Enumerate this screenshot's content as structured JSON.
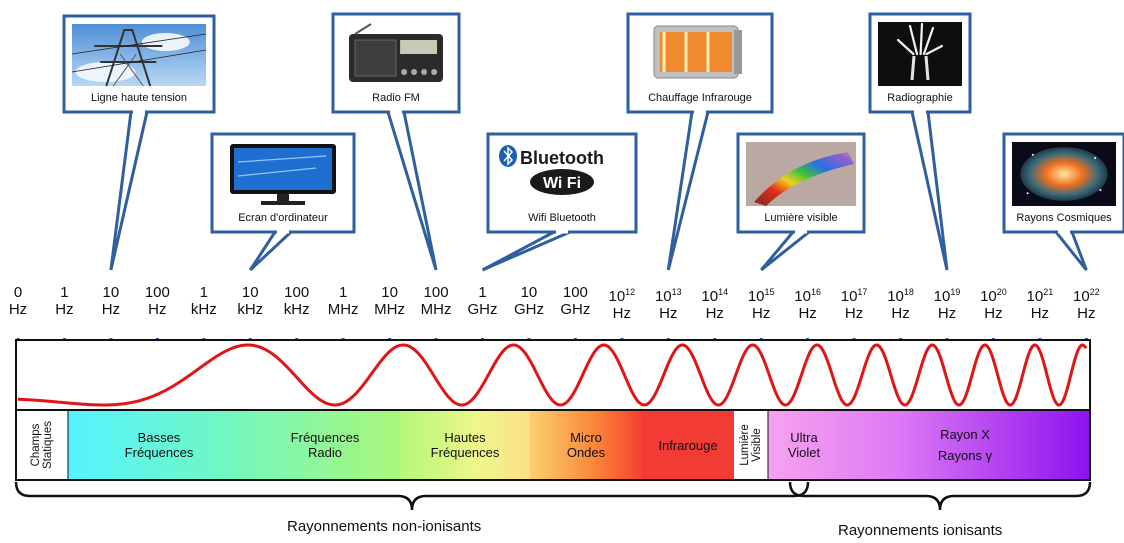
{
  "frequency_ticks": [
    {
      "value": "0",
      "exp": "",
      "unit": "Hz"
    },
    {
      "value": "1",
      "exp": "",
      "unit": "Hz"
    },
    {
      "value": "10",
      "exp": "",
      "unit": "Hz"
    },
    {
      "value": "100",
      "exp": "",
      "unit": "Hz"
    },
    {
      "value": "1",
      "exp": "",
      "unit": "kHz"
    },
    {
      "value": "10",
      "exp": "",
      "unit": "kHz"
    },
    {
      "value": "100",
      "exp": "",
      "unit": "kHz"
    },
    {
      "value": "1",
      "exp": "",
      "unit": "MHz"
    },
    {
      "value": "10",
      "exp": "",
      "unit": "MHz"
    },
    {
      "value": "100",
      "exp": "",
      "unit": "MHz"
    },
    {
      "value": "1",
      "exp": "",
      "unit": "GHz"
    },
    {
      "value": "10",
      "exp": "",
      "unit": "GHz"
    },
    {
      "value": "100",
      "exp": "",
      "unit": "GHz"
    },
    {
      "value": "10",
      "exp": "12",
      "unit": "Hz"
    },
    {
      "value": "10",
      "exp": "13",
      "unit": "Hz"
    },
    {
      "value": "10",
      "exp": "14",
      "unit": "Hz"
    },
    {
      "value": "10",
      "exp": "15",
      "unit": "Hz"
    },
    {
      "value": "10",
      "exp": "16",
      "unit": "Hz"
    },
    {
      "value": "10",
      "exp": "17",
      "unit": "Hz"
    },
    {
      "value": "10",
      "exp": "18",
      "unit": "Hz"
    },
    {
      "value": "10",
      "exp": "19",
      "unit": "Hz"
    },
    {
      "value": "10",
      "exp": "20",
      "unit": "Hz"
    },
    {
      "value": "10",
      "exp": "21",
      "unit": "Hz"
    },
    {
      "value": "10",
      "exp": "22",
      "unit": "Hz"
    }
  ],
  "callouts": [
    {
      "caption": "Ligne haute tension",
      "icon": "power-line-icon",
      "tick_index": 2
    },
    {
      "caption": "Ecran d'ordinateur",
      "icon": "monitor-icon",
      "tick_index": 5
    },
    {
      "caption": "Radio FM",
      "icon": "radio-icon",
      "tick_index": 9
    },
    {
      "caption": "Wifi Bluetooth",
      "icon": "wifi-bluetooth-icon",
      "tick_index": 10,
      "logo_text_1": "Bluetooth",
      "logo_text_2": "Wi Fi"
    },
    {
      "caption": "Chauffage Infrarouge",
      "icon": "heater-icon",
      "tick_index": 14
    },
    {
      "caption": "Lumière visible",
      "icon": "rainbow-icon",
      "tick_index": 16
    },
    {
      "caption": "Radiographie",
      "icon": "xray-hand-icon",
      "tick_index": 20
    },
    {
      "caption": "Rayons Cosmiques",
      "icon": "nebula-icon",
      "tick_index": 23
    }
  ],
  "bands": [
    {
      "name": "champs-statiques",
      "line1": "Champs",
      "line2": "Statiques",
      "rotated": true
    },
    {
      "name": "basses-frequences",
      "line1": "Basses",
      "line2": "Fréquences"
    },
    {
      "name": "frequences-radio",
      "line1": "Fréquences",
      "line2": "Radio"
    },
    {
      "name": "hautes-frequences",
      "line1": "Hautes",
      "line2": "Fréquences"
    },
    {
      "name": "micro-ondes",
      "line1": "Micro",
      "line2": "Ondes"
    },
    {
      "name": "infrarouge",
      "line1": "Infrarouge",
      "line2": ""
    },
    {
      "name": "lumiere-visible",
      "line1": "Lumière",
      "line2": "Visible",
      "rotated": true
    },
    {
      "name": "ultra-violet",
      "line1": "Ultra",
      "line2": "Violet"
    },
    {
      "name": "rayon-x",
      "line1": "Rayon X",
      "line2": "Rayons γ"
    }
  ],
  "groups": {
    "non_ionizing": "Rayonnements non-ionisants",
    "ionizing": "Rayonnements ionisants"
  },
  "colors": {
    "callout_border": "#2f5f9e",
    "axis": "#2f5f9e",
    "wave": "#e01515",
    "frame": "#111111"
  }
}
